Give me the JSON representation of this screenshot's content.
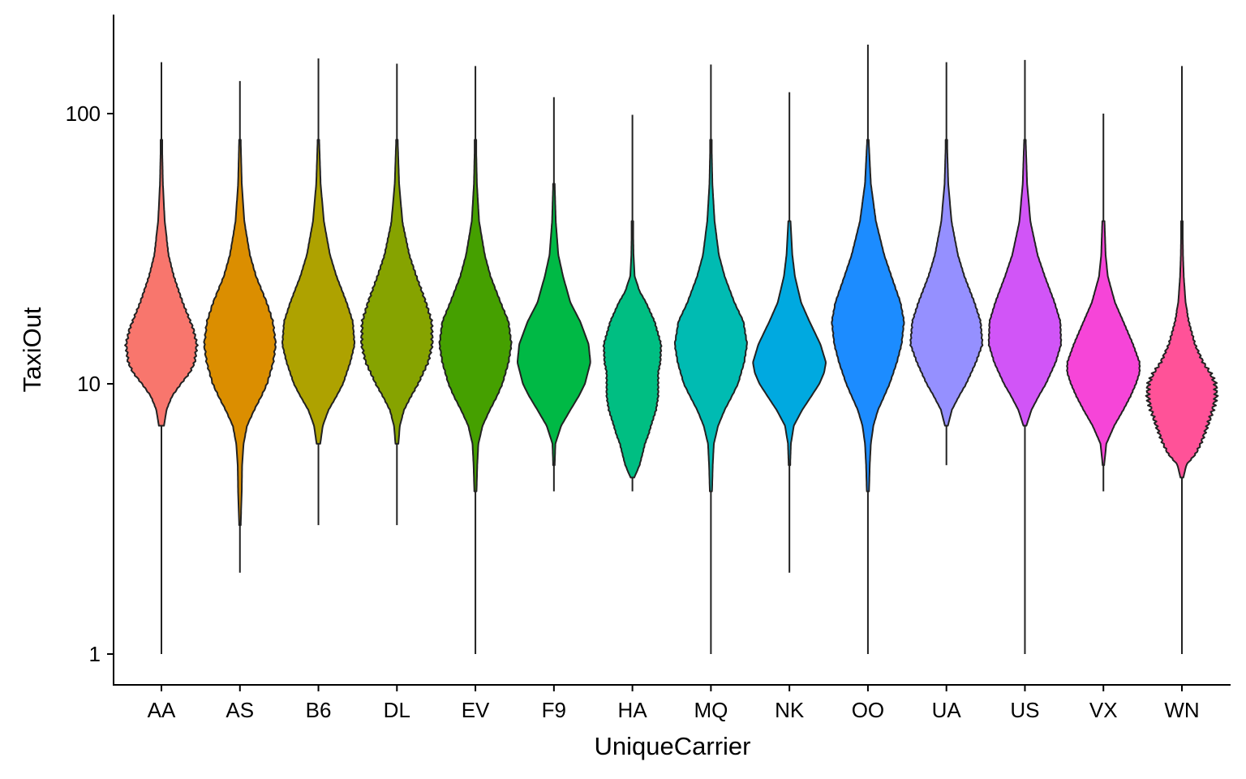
{
  "chart_data": {
    "type": "violin",
    "xlabel": "UniqueCarrier",
    "ylabel": "TaxiOut",
    "y_scale": "log10",
    "ylim": [
      0.77,
      230
    ],
    "yticks": [
      {
        "value": 1,
        "label": "1"
      },
      {
        "value": 10,
        "label": "10"
      },
      {
        "value": 100,
        "label": "100"
      }
    ],
    "grid": false,
    "legend": "none",
    "categories": [
      "AA",
      "AS",
      "B6",
      "DL",
      "EV",
      "F9",
      "HA",
      "MQ",
      "NK",
      "OO",
      "UA",
      "US",
      "VX",
      "WN"
    ],
    "series": [
      {
        "category": "AA",
        "color": "#F8766D",
        "min": 1,
        "max": 155,
        "profile": [
          [
            7,
            0.07
          ],
          [
            8,
            0.14
          ],
          [
            9,
            0.3
          ],
          [
            10,
            0.55
          ],
          [
            11,
            0.8
          ],
          [
            12,
            0.94
          ],
          [
            14,
            1.0
          ],
          [
            16,
            0.9
          ],
          [
            20,
            0.6
          ],
          [
            25,
            0.35
          ],
          [
            30,
            0.2
          ],
          [
            40,
            0.09
          ],
          [
            55,
            0.04
          ],
          [
            80,
            0.015
          ]
        ],
        "jaggy": 0.06
      },
      {
        "category": "AS",
        "color": "#DB8E00",
        "min": 2,
        "max": 132,
        "profile": [
          [
            3,
            0.02
          ],
          [
            4,
            0.05
          ],
          [
            5,
            0.06
          ],
          [
            6,
            0.1
          ],
          [
            7,
            0.2
          ],
          [
            8,
            0.4
          ],
          [
            9,
            0.6
          ],
          [
            10,
            0.76
          ],
          [
            12,
            0.93
          ],
          [
            14,
            1.0
          ],
          [
            17,
            0.92
          ],
          [
            20,
            0.75
          ],
          [
            25,
            0.45
          ],
          [
            30,
            0.28
          ],
          [
            40,
            0.12
          ],
          [
            55,
            0.05
          ],
          [
            80,
            0.02
          ]
        ],
        "jaggy": 0.04
      },
      {
        "category": "B6",
        "color": "#AEA200",
        "min": 3,
        "max": 160,
        "profile": [
          [
            6,
            0.05
          ],
          [
            7,
            0.12
          ],
          [
            8,
            0.28
          ],
          [
            9,
            0.5
          ],
          [
            10,
            0.68
          ],
          [
            12,
            0.88
          ],
          [
            14,
            1.0
          ],
          [
            17,
            0.95
          ],
          [
            20,
            0.78
          ],
          [
            25,
            0.5
          ],
          [
            30,
            0.32
          ],
          [
            40,
            0.15
          ],
          [
            55,
            0.06
          ],
          [
            80,
            0.02
          ]
        ],
        "jaggy": 0.02
      },
      {
        "category": "DL",
        "color": "#86A300",
        "min": 3,
        "max": 153,
        "profile": [
          [
            6,
            0.04
          ],
          [
            7,
            0.08
          ],
          [
            8,
            0.2
          ],
          [
            9,
            0.4
          ],
          [
            10,
            0.6
          ],
          [
            12,
            0.88
          ],
          [
            14,
            1.0
          ],
          [
            17,
            0.98
          ],
          [
            20,
            0.82
          ],
          [
            25,
            0.55
          ],
          [
            30,
            0.35
          ],
          [
            40,
            0.15
          ],
          [
            55,
            0.06
          ],
          [
            80,
            0.02
          ]
        ],
        "jaggy": 0.06
      },
      {
        "category": "EV",
        "color": "#45A000",
        "min": 1,
        "max": 150,
        "profile": [
          [
            4,
            0.03
          ],
          [
            5,
            0.05
          ],
          [
            6,
            0.08
          ],
          [
            7,
            0.2
          ],
          [
            8,
            0.4
          ],
          [
            9,
            0.6
          ],
          [
            10,
            0.75
          ],
          [
            12,
            0.92
          ],
          [
            14,
            1.0
          ],
          [
            17,
            0.92
          ],
          [
            20,
            0.7
          ],
          [
            25,
            0.42
          ],
          [
            30,
            0.26
          ],
          [
            40,
            0.1
          ],
          [
            55,
            0.04
          ],
          [
            80,
            0.015
          ]
        ],
        "jaggy": 0.03
      },
      {
        "category": "F9",
        "color": "#00B945",
        "min": 4,
        "max": 115,
        "profile": [
          [
            5,
            0.02
          ],
          [
            6,
            0.04
          ],
          [
            7,
            0.2
          ],
          [
            8,
            0.45
          ],
          [
            9,
            0.68
          ],
          [
            10,
            0.85
          ],
          [
            12,
            1.0
          ],
          [
            14,
            0.95
          ],
          [
            17,
            0.72
          ],
          [
            20,
            0.45
          ],
          [
            25,
            0.25
          ],
          [
            30,
            0.12
          ],
          [
            40,
            0.05
          ],
          [
            55,
            0.02
          ]
        ],
        "jaggy": 0.0
      },
      {
        "category": "HA",
        "color": "#00BE82",
        "min": 4,
        "max": 99,
        "profile": [
          [
            4.5,
            0.05
          ],
          [
            5,
            0.2
          ],
          [
            5.5,
            0.28
          ],
          [
            6,
            0.35
          ],
          [
            6.5,
            0.45
          ],
          [
            7,
            0.52
          ],
          [
            8,
            0.66
          ],
          [
            9,
            0.72
          ],
          [
            10,
            0.72
          ],
          [
            11,
            0.72
          ],
          [
            12,
            0.78
          ],
          [
            14,
            0.8
          ],
          [
            17,
            0.62
          ],
          [
            20,
            0.38
          ],
          [
            22,
            0.2
          ],
          [
            25,
            0.06
          ],
          [
            30,
            0.03
          ],
          [
            40,
            0.015
          ]
        ],
        "jaggy": 0.04
      },
      {
        "category": "MQ",
        "color": "#00BBB2",
        "min": 1,
        "max": 152,
        "profile": [
          [
            4,
            0.03
          ],
          [
            5,
            0.05
          ],
          [
            6,
            0.08
          ],
          [
            7,
            0.2
          ],
          [
            8,
            0.38
          ],
          [
            9,
            0.58
          ],
          [
            10,
            0.75
          ],
          [
            12,
            0.92
          ],
          [
            14,
            1.0
          ],
          [
            17,
            0.9
          ],
          [
            20,
            0.65
          ],
          [
            25,
            0.38
          ],
          [
            30,
            0.22
          ],
          [
            40,
            0.1
          ],
          [
            55,
            0.04
          ],
          [
            80,
            0.015
          ]
        ],
        "jaggy": 0.02
      },
      {
        "category": "NK",
        "color": "#00A9E0",
        "min": 2,
        "max": 120,
        "profile": [
          [
            5,
            0.02
          ],
          [
            6,
            0.04
          ],
          [
            7,
            0.12
          ],
          [
            8,
            0.35
          ],
          [
            9,
            0.6
          ],
          [
            10,
            0.82
          ],
          [
            11,
            0.95
          ],
          [
            12,
            1.0
          ],
          [
            14,
            0.85
          ],
          [
            17,
            0.55
          ],
          [
            20,
            0.32
          ],
          [
            25,
            0.15
          ],
          [
            30,
            0.08
          ],
          [
            40,
            0.03
          ]
        ],
        "jaggy": 0.0
      },
      {
        "category": "OO",
        "color": "#1C8CFF",
        "min": 1,
        "max": 180,
        "profile": [
          [
            4,
            0.03
          ],
          [
            5,
            0.05
          ],
          [
            6,
            0.08
          ],
          [
            7,
            0.15
          ],
          [
            8,
            0.28
          ],
          [
            9,
            0.45
          ],
          [
            10,
            0.6
          ],
          [
            12,
            0.8
          ],
          [
            14,
            0.93
          ],
          [
            17,
            1.0
          ],
          [
            20,
            0.9
          ],
          [
            25,
            0.65
          ],
          [
            30,
            0.45
          ],
          [
            40,
            0.22
          ],
          [
            55,
            0.08
          ],
          [
            80,
            0.02
          ]
        ],
        "jaggy": 0.02
      },
      {
        "category": "UA",
        "color": "#9590FF",
        "min": 5,
        "max": 155,
        "profile": [
          [
            7,
            0.04
          ],
          [
            8,
            0.15
          ],
          [
            9,
            0.35
          ],
          [
            10,
            0.55
          ],
          [
            12,
            0.82
          ],
          [
            14,
            1.0
          ],
          [
            17,
            0.95
          ],
          [
            20,
            0.78
          ],
          [
            25,
            0.5
          ],
          [
            30,
            0.32
          ],
          [
            40,
            0.14
          ],
          [
            55,
            0.05
          ],
          [
            80,
            0.015
          ]
        ],
        "jaggy": 0.03
      },
      {
        "category": "US",
        "color": "#D155F7",
        "min": 1,
        "max": 158,
        "profile": [
          [
            7,
            0.04
          ],
          [
            8,
            0.18
          ],
          [
            9,
            0.38
          ],
          [
            10,
            0.58
          ],
          [
            12,
            0.85
          ],
          [
            14,
            1.0
          ],
          [
            17,
            0.98
          ],
          [
            20,
            0.82
          ],
          [
            25,
            0.55
          ],
          [
            30,
            0.35
          ],
          [
            40,
            0.15
          ],
          [
            55,
            0.06
          ],
          [
            80,
            0.02
          ]
        ],
        "jaggy": 0.02
      },
      {
        "category": "VX",
        "color": "#F645D8",
        "min": 4,
        "max": 100,
        "profile": [
          [
            5,
            0.02
          ],
          [
            6,
            0.08
          ],
          [
            7,
            0.3
          ],
          [
            8,
            0.55
          ],
          [
            9,
            0.75
          ],
          [
            10,
            0.9
          ],
          [
            11,
            1.0
          ],
          [
            12,
            1.0
          ],
          [
            14,
            0.82
          ],
          [
            17,
            0.55
          ],
          [
            20,
            0.32
          ],
          [
            25,
            0.12
          ],
          [
            30,
            0.06
          ],
          [
            40,
            0.03
          ]
        ],
        "jaggy": 0.02
      },
      {
        "category": "WN",
        "color": "#FF5298",
        "min": 1,
        "max": 150,
        "profile": [
          [
            4.5,
            0.04
          ],
          [
            5,
            0.12
          ],
          [
            5.5,
            0.4
          ],
          [
            6,
            0.55
          ],
          [
            6.5,
            0.65
          ],
          [
            7,
            0.75
          ],
          [
            8,
            0.9
          ],
          [
            9,
            1.0
          ],
          [
            10,
            0.98
          ],
          [
            11,
            0.82
          ],
          [
            12,
            0.62
          ],
          [
            14,
            0.38
          ],
          [
            17,
            0.2
          ],
          [
            20,
            0.1
          ],
          [
            25,
            0.05
          ],
          [
            30,
            0.03
          ],
          [
            40,
            0.015
          ]
        ],
        "jaggy": 0.12
      }
    ]
  }
}
